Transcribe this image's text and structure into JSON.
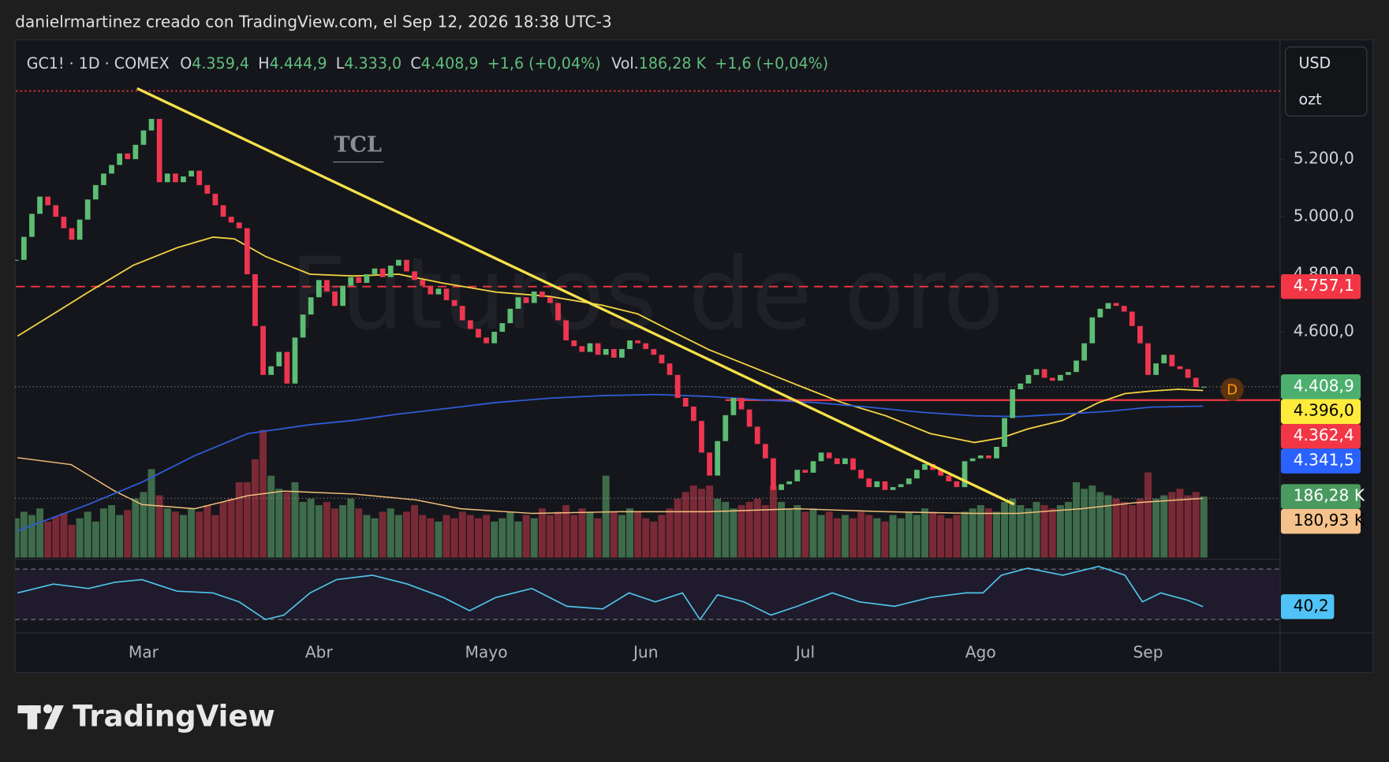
{
  "header": {
    "attribution": "danielrmartinez creado con TradingView.com, el Sep 12, 2026 18:38 UTC-3"
  },
  "chart_data": {
    "type": "candlestick",
    "legend": {
      "symbol": "GC1! · 1D · COMEX",
      "fields": [
        {
          "key": "O",
          "value": "4.359,4"
        },
        {
          "key": "H",
          "value": "4.444,9"
        },
        {
          "key": "L",
          "value": "4.333,0"
        },
        {
          "key": "C",
          "value": "4.408,9"
        }
      ],
      "change": "+1,6 (+0,04%)",
      "volume_key": "Vol.",
      "volume_value": "186,28 K",
      "volume_change": "+1,6 (+0,04%)"
    },
    "watermark": "Futuros de oro",
    "logo": "TCL",
    "currency": "USD",
    "unit": "ozt",
    "badge": "D",
    "categories": [
      null,
      null,
      null,
      null,
      null,
      null,
      null,
      null,
      null,
      null,
      null,
      null,
      null,
      null,
      null,
      null,
      "Mar",
      null,
      null,
      null,
      null,
      null,
      null,
      null,
      null,
      null,
      null,
      null,
      null,
      null,
      null,
      null,
      null,
      null,
      null,
      null,
      null,
      null,
      "Abr",
      null,
      null,
      null,
      null,
      null,
      null,
      null,
      null,
      null,
      null,
      null,
      null,
      null,
      null,
      null,
      null,
      null,
      null,
      null,
      null,
      "Mayo",
      null,
      null,
      null,
      null,
      null,
      null,
      null,
      null,
      null,
      null,
      null,
      null,
      null,
      null,
      null,
      null,
      null,
      null,
      null,
      "Jun",
      null,
      null,
      null,
      null,
      null,
      null,
      null,
      null,
      null,
      null,
      null,
      null,
      null,
      null,
      null,
      null,
      null,
      null,
      null,
      "Jul",
      null,
      null,
      null,
      null,
      null,
      null,
      null,
      null,
      null,
      null,
      null,
      null,
      null,
      null,
      null,
      null,
      null,
      null,
      null,
      null,
      null,
      "Ago",
      null,
      null,
      null,
      null,
      null,
      null,
      null,
      null,
      null,
      null,
      null,
      null,
      null,
      null,
      null,
      null,
      null,
      null,
      null,
      null,
      "Sep",
      null,
      null,
      null,
      null,
      null,
      null,
      null
    ],
    "close": [
      4850,
      4930,
      5010,
      5070,
      5040,
      5000,
      4960,
      4920,
      4990,
      5060,
      5110,
      5150,
      5180,
      5220,
      5200,
      5250,
      5300,
      5340,
      5120,
      5150,
      5120,
      5140,
      5160,
      5110,
      5080,
      5040,
      5000,
      4980,
      4960,
      4800,
      4620,
      4450,
      4480,
      4530,
      4420,
      4580,
      4660,
      4720,
      4780,
      4740,
      4690,
      4760,
      4790,
      4770,
      4800,
      4820,
      4790,
      4830,
      4850,
      4810,
      4780,
      4760,
      4730,
      4750,
      4710,
      4690,
      4640,
      4610,
      4580,
      4560,
      4600,
      4630,
      4680,
      4720,
      4700,
      4740,
      4720,
      4700,
      4640,
      4570,
      4550,
      4530,
      4560,
      4520,
      4540,
      4510,
      4540,
      4570,
      4560,
      4540,
      4520,
      4490,
      4450,
      4370,
      4340,
      4290,
      4180,
      4100,
      4220,
      4310,
      4370,
      4330,
      4270,
      4210,
      4160,
      4050,
      4070,
      4080,
      4120,
      4110,
      4150,
      4180,
      4160,
      4140,
      4160,
      4120,
      4090,
      4060,
      4080,
      4050,
      4060,
      4070,
      4090,
      4120,
      4140,
      4120,
      4100,
      4080,
      4060,
      4150,
      4160,
      4170,
      4160,
      4200,
      4300,
      4400,
      4420,
      4450,
      4470,
      4440,
      4430,
      4450,
      4460,
      4500,
      4560,
      4650,
      4680,
      4700,
      4690,
      4670,
      4620,
      4560,
      4450,
      4490,
      4520,
      4480,
      4470,
      4440,
      4407.3,
      4408.9
    ],
    "volume": [
      120,
      140,
      130,
      150,
      110,
      125,
      135,
      100,
      120,
      140,
      110,
      150,
      160,
      130,
      145,
      180,
      200,
      270,
      190,
      150,
      140,
      130,
      150,
      140,
      160,
      130,
      170,
      180,
      230,
      230,
      300,
      390,
      250,
      210,
      200,
      230,
      170,
      180,
      160,
      170,
      150,
      160,
      180,
      150,
      130,
      120,
      140,
      150,
      130,
      140,
      160,
      130,
      120,
      110,
      130,
      120,
      140,
      130,
      120,
      130,
      110,
      120,
      140,
      110,
      130,
      120,
      150,
      130,
      140,
      160,
      130,
      150,
      140,
      120,
      250,
      140,
      130,
      150,
      140,
      120,
      110,
      130,
      150,
      180,
      200,
      220,
      210,
      220,
      180,
      170,
      150,
      160,
      170,
      180,
      160,
      220,
      170,
      150,
      160,
      140,
      150,
      130,
      140,
      120,
      130,
      120,
      140,
      130,
      120,
      110,
      130,
      120,
      140,
      130,
      150,
      140,
      130,
      120,
      130,
      140,
      150,
      160,
      150,
      140,
      170,
      180,
      160,
      150,
      170,
      160,
      150,
      160,
      170,
      230,
      210,
      220,
      200,
      190,
      180,
      170,
      160,
      180,
      260,
      180,
      190,
      200,
      210,
      190,
      200,
      186.28
    ],
    "ylim": [
      3815,
      5615
    ],
    "yticks": [
      {
        "value": 5200,
        "label": "5.200,0"
      },
      {
        "value": 5000,
        "label": "5.000,0"
      },
      {
        "value": 4800,
        "label": "4.800,0"
      },
      {
        "value": 4600,
        "label": "4.600,0"
      }
    ],
    "volume_ylim": [
      0,
      400
    ],
    "moving_averages": [
      {
        "color": "#f5d442",
        "x": [
          0.2,
          4.7,
          9.1,
          14.7,
          20.2,
          24.7,
          27.4,
          31.3,
          36.9,
          42.4,
          48,
          53.6,
          60.2,
          66.9,
          73.6,
          78,
          82.4,
          86.9,
          92.4,
          98,
          103.6,
          109.1,
          114.7,
          120.2,
          123.6,
          126.9,
          131.3,
          135.8,
          139.1,
          142.4,
          145.8,
          148.9
        ],
        "values": [
          4585,
          4662,
          4738,
          4831,
          4892,
          4929,
          4923,
          4862,
          4800,
          4794,
          4800,
          4769,
          4738,
          4723,
          4692,
          4662,
          4600,
          4538,
          4477,
          4415,
          4354,
          4308,
          4246,
          4215,
          4231,
          4262,
          4292,
          4354,
          4385,
          4394,
          4400,
          4396.0
        ]
      },
      {
        "color": "#2f5bd6",
        "x": [
          0.2,
          9.1,
          15.8,
          22.4,
          29.1,
          36.9,
          42.4,
          48,
          53.6,
          60.2,
          66.9,
          73.6,
          80.2,
          86.9,
          93.6,
          100.2,
          106.9,
          113.6,
          120.2,
          125.8,
          131.3,
          136.9,
          142.4,
          148.9
        ],
        "values": [
          3908,
          4000,
          4077,
          4169,
          4246,
          4277,
          4292,
          4314,
          4332,
          4354,
          4369,
          4378,
          4382,
          4375,
          4363,
          4354,
          4338,
          4320,
          4308,
          4305,
          4314,
          4323,
          4338,
          4341.5
        ]
      }
    ],
    "volume_ma": {
      "color": "#f5c27a",
      "x": [
        0.2,
        6.9,
        12.4,
        15.8,
        22.4,
        29.1,
        33.6,
        42.4,
        50.2,
        55.8,
        64.7,
        75.8,
        86.9,
        98,
        109.1,
        120.2,
        125.8,
        133.6,
        140.2,
        148.9
      ],
      "values": [
        305,
        284,
        203,
        162,
        149,
        189,
        203,
        194,
        176,
        149,
        135,
        140,
        140,
        149,
        140,
        135,
        135,
        149,
        167,
        180.93
      ]
    },
    "trendline": {
      "color": "#f5e14a",
      "x": [
        15.2,
        125.2
      ],
      "values": [
        5446,
        4000
      ]
    },
    "levels": [
      {
        "value": 5437,
        "style": "dotted",
        "color": "#f23645",
        "from": 0
      },
      {
        "value": 4757.1,
        "style": "dashed",
        "color": "#f23645",
        "from": 0
      },
      {
        "value": 4362.4,
        "style": "solid",
        "color": "#f23645",
        "from": 89
      }
    ],
    "price_labels": [
      {
        "value": 4757.1,
        "label": "4.757,1",
        "scale": "price",
        "color": "#f23645",
        "text_color": "#ffffff"
      },
      {
        "value": 4408.9,
        "label": "4.408,9",
        "scale": "price",
        "color": "#4caf6e",
        "text_color": "#ffffff"
      },
      {
        "value": 4396.0,
        "label": "4.396,0",
        "scale": "price",
        "color": "#ffeb3b",
        "text_color": "#000000"
      },
      {
        "value": 4362.4,
        "label": "4.362,4",
        "scale": "price",
        "color": "#f23645",
        "text_color": "#ffffff"
      },
      {
        "value": 4341.5,
        "label": "4.341,5",
        "scale": "price",
        "color": "#2962ff",
        "text_color": "#ffffff"
      },
      {
        "value": 186.28,
        "label": "186,28 K",
        "scale": "volume",
        "color": "#4a9a5f",
        "text_color": "#ffffff"
      },
      {
        "value": 180.93,
        "label": "180,93 K",
        "scale": "volume",
        "color": "#f6c28b",
        "text_color": "#000000"
      }
    ],
    "rsi": {
      "color": "#4fc3e8",
      "ylim": [
        21.6,
        77
      ],
      "bands": [
        70,
        30
      ],
      "x": [
        0.2,
        4.7,
        9.1,
        12.4,
        15.8,
        20.2,
        24.7,
        28,
        31.3,
        33.6,
        36.9,
        40.2,
        44.7,
        49.1,
        53.6,
        56.9,
        60.2,
        64.7,
        69.1,
        73.6,
        76.9,
        80.2,
        83.6,
        85.8,
        88,
        91.3,
        94.7,
        98,
        102.4,
        105.8,
        110.2,
        114.7,
        119.1,
        121.3,
        123.6,
        126.9,
        131.3,
        135.8,
        139.1,
        141.3,
        143.6,
        146.9,
        148.9
      ],
      "values": [
        51.1,
        58.1,
        54.6,
        59.5,
        61.6,
        52.5,
        51.1,
        44.0,
        30.0,
        33.5,
        51.1,
        61.6,
        65.1,
        58.1,
        47.5,
        37.0,
        47.5,
        54.6,
        40.5,
        38.4,
        51.1,
        44.0,
        51.1,
        30.0,
        49.6,
        44.0,
        33.5,
        40.5,
        51.1,
        44.0,
        40.5,
        47.5,
        51.1,
        51.1,
        65.1,
        70.7,
        65.1,
        72.1,
        65.1,
        44.0,
        51.1,
        45.4,
        40.2
      ],
      "label": {
        "value": 40.2,
        "label": "40,2",
        "color": "#4fc3f7",
        "text_color": "#000000"
      }
    }
  },
  "footer": {
    "brand": "TradingView"
  }
}
